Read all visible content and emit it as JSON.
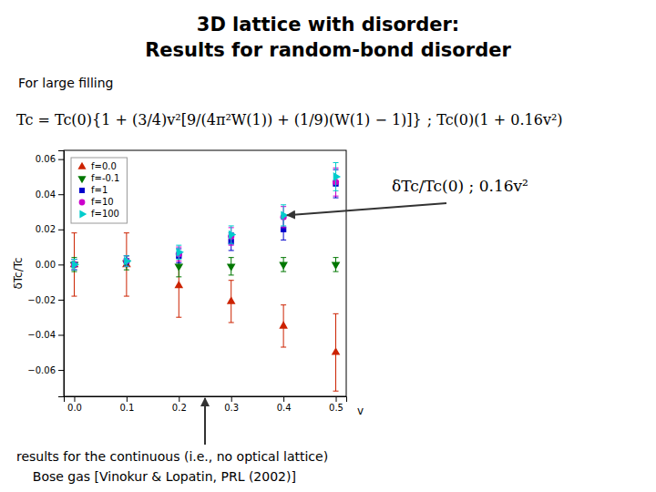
{
  "chart_data": {
    "type": "scatter",
    "title": "3D lattice with disorder:",
    "subtitle": "Results for random-bond disorder",
    "x_label": "v",
    "y_label": "δTc/Tc",
    "x": [
      0.0,
      0.1,
      0.2,
      0.3,
      0.4,
      0.5
    ],
    "series": [
      {
        "name": "f=0.0",
        "color": "#cc2200",
        "marker": "triangle-up",
        "values": [
          0.0,
          0.0,
          -0.012,
          -0.021,
          -0.035,
          -0.05
        ],
        "errors": [
          0.018,
          0.018,
          0.018,
          0.012,
          0.012,
          0.022
        ]
      },
      {
        "name": "f=-0.1",
        "color": "#007700",
        "marker": "triangle-down",
        "values": [
          0.0,
          0.001,
          -0.001,
          -0.001,
          0.0,
          0.0
        ],
        "errors": [
          0.004,
          0.004,
          0.006,
          0.005,
          0.004,
          0.004
        ]
      },
      {
        "name": "f=1",
        "color": "#0000cc",
        "marker": "square",
        "values": [
          0.0,
          0.002,
          0.005,
          0.013,
          0.02,
          0.046
        ],
        "errors": [
          0.003,
          0.003,
          0.004,
          0.005,
          0.006,
          0.008
        ]
      },
      {
        "name": "f=10",
        "color": "#cc00cc",
        "marker": "circle",
        "values": [
          0.0,
          0.002,
          0.006,
          0.016,
          0.027,
          0.047
        ],
        "errors": [
          0.003,
          0.003,
          0.004,
          0.005,
          0.006,
          0.008
        ]
      },
      {
        "name": "f=100",
        "color": "#00cccc",
        "marker": "triangle-right",
        "values": [
          0.0,
          0.002,
          0.007,
          0.017,
          0.028,
          0.05
        ],
        "errors": [
          0.003,
          0.003,
          0.004,
          0.005,
          0.006,
          0.008
        ]
      }
    ],
    "xlim": [
      -0.02,
      0.52
    ],
    "xticks": [
      {
        "value": 0,
        "label": "0.0"
      },
      {
        "value": 0.1,
        "label": "0.1"
      },
      {
        "value": 0.2,
        "label": "0.2"
      },
      {
        "value": 0.3,
        "label": "0.3"
      },
      {
        "value": 0.4,
        "label": "0.4"
      },
      {
        "value": 0.5,
        "label": "0.5"
      }
    ],
    "ylim": [
      -0.075,
      0.065
    ],
    "yticks": [
      {
        "value": -0.06,
        "label": "−0.06"
      },
      {
        "value": -0.04,
        "label": "−0.04"
      },
      {
        "value": -0.02,
        "label": "−0.02"
      },
      {
        "value": 0,
        "label": "0.00"
      },
      {
        "value": 0.02,
        "label": "0.02"
      },
      {
        "value": 0.04,
        "label": "0.04"
      },
      {
        "value": 0.06,
        "label": "0.06"
      }
    ],
    "grid": false,
    "legend": "upper left",
    "annotations": [
      {
        "text": "For large filling"
      },
      {
        "text": "Tc = Tc(0){1 + (3/4)v²[9/(4π²W(1)) + (1/9)(W(1) − 1)]}"
      },
      {
        "text": "; Tc(0)(1 + 0.16v²)"
      },
      {
        "text": "δTc/Tc(0) ; 0.16v²",
        "x": 0.4,
        "y": 0.027
      },
      {
        "text": "results for the continuous (i.e., no optical lattice)",
        "x": 0.25
      },
      {
        "text": "    Bose gas [Vinokur & Lopatin, PRL (2002)]"
      }
    ]
  }
}
